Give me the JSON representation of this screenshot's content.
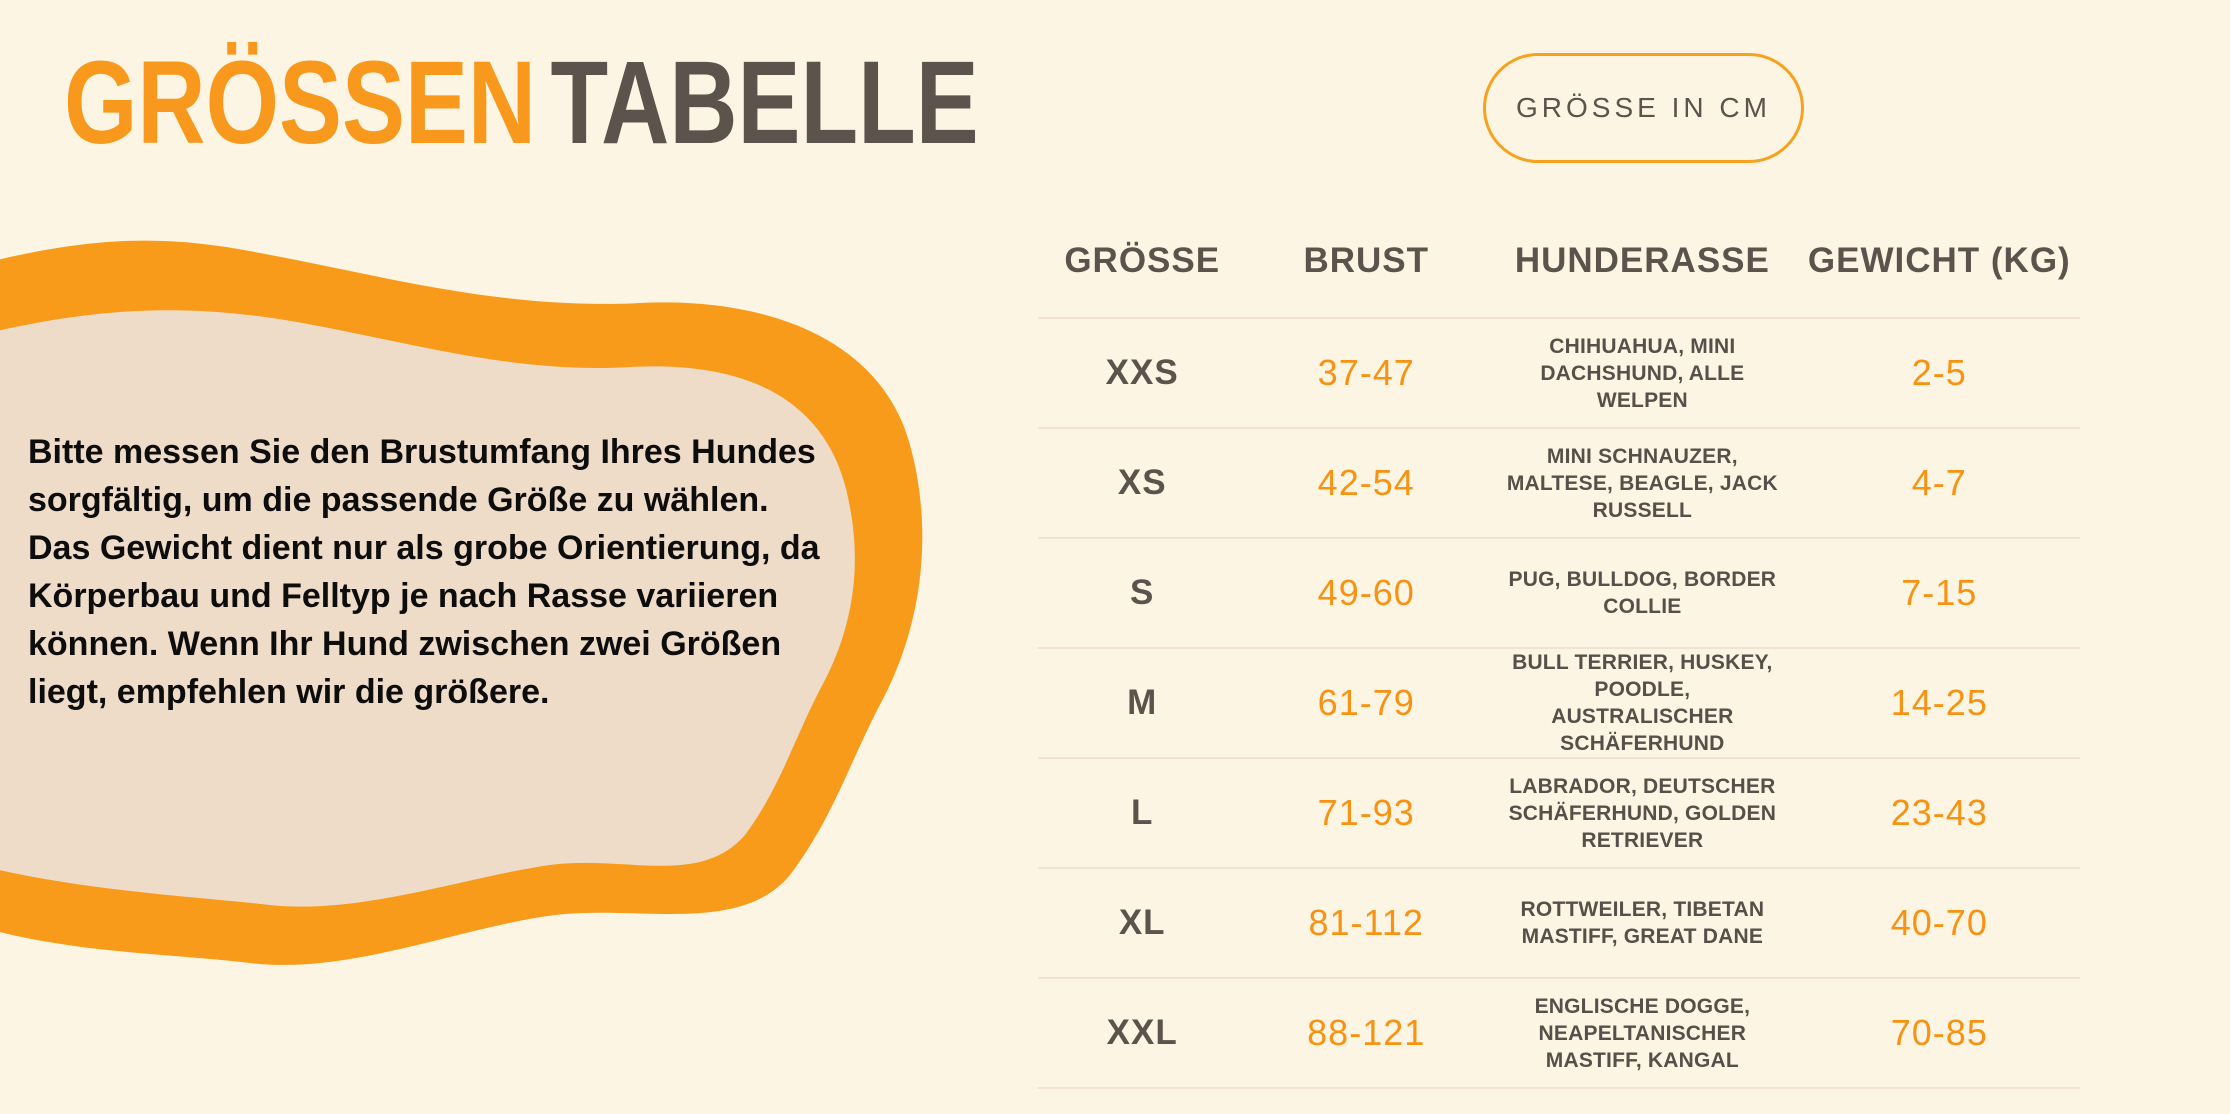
{
  "colors": {
    "background": "#FDF5E3",
    "accent_orange": "#F8981D",
    "number_orange": "#F79212",
    "dark_text": "#5B534C",
    "note_fill": "#EEDCC8",
    "note_border": "#F89B1B",
    "divider": "#F2E2D0"
  },
  "header": {
    "title_highlight": "GRÖSSEN",
    "title_rest": "TABELLE",
    "unit_badge": "GRÖSSE IN CM"
  },
  "note": {
    "text": "Bitte messen Sie den Brustumfang Ihres Hundes sorgfältig, um die passende Größe zu wählen. Das Gewicht dient nur als grobe Orientierung, da Körperbau und Felltyp je nach Rasse variieren können. Wenn Ihr Hund zwischen zwei Größen liegt, empfehlen wir die größere."
  },
  "chart_data": {
    "type": "table",
    "title": "GRÖSSENTABELLE",
    "unit_label": "GRÖSSE IN CM",
    "columns": [
      "GRÖSSE",
      "BRUST",
      "HUNDERASSE",
      "GEWICHT (KG)"
    ],
    "rows": [
      {
        "size": "XXS",
        "brust": "37-47",
        "breeds": "CHIHUAHUA, MINI DACHSHUND, ALLE WELPEN",
        "gewicht": "2-5"
      },
      {
        "size": "XS",
        "brust": "42-54",
        "breeds": "MINI SCHNAUZER, MALTESE, BEAGLE, JACK RUSSELL",
        "gewicht": "4-7"
      },
      {
        "size": "S",
        "brust": "49-60",
        "breeds": "PUG, BULLDOG, BORDER COLLIE",
        "gewicht": "7-15"
      },
      {
        "size": "M",
        "brust": "61-79",
        "breeds": "BULL TERRIER, HUSKEY, POODLE, AUSTRALISCHER SCHÄFERHUND",
        "gewicht": "14-25"
      },
      {
        "size": "L",
        "brust": "71-93",
        "breeds": "LABRADOR, DEUTSCHER SCHÄFERHUND, GOLDEN RETRIEVER",
        "gewicht": "23-43"
      },
      {
        "size": "XL",
        "brust": "81-112",
        "breeds": "ROTTWEILER, TIBETAN MASTIFF, GREAT DANE",
        "gewicht": "40-70"
      },
      {
        "size": "XXL",
        "brust": "88-121",
        "breeds": "ENGLISCHE DOGGE, NEAPELTANISCHER MASTIFF, KANGAL",
        "gewicht": "70-85"
      }
    ]
  }
}
